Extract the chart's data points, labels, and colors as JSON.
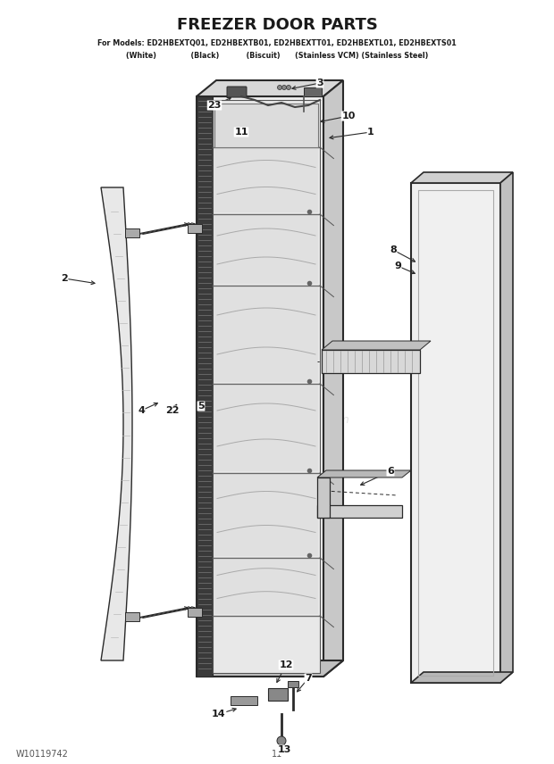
{
  "title": "FREEZER DOOR PARTS",
  "subtitle_line1": "For Models: ED2HBEXTQ01, ED2HBEXTB01, ED2HBEXTT01, ED2HBEXTL01, ED2HBEXTS01",
  "subtitle_line2": "          (White)              (Black)           (Biscuit)      (Stainless VCM) (Stainless Steel)",
  "footer_left": "W10119742",
  "footer_center": "11",
  "watermark": "eReplacementParts.com",
  "bg_color": "#ffffff",
  "line_color": "#2a2a2a",
  "text_color": "#1a1a1a"
}
